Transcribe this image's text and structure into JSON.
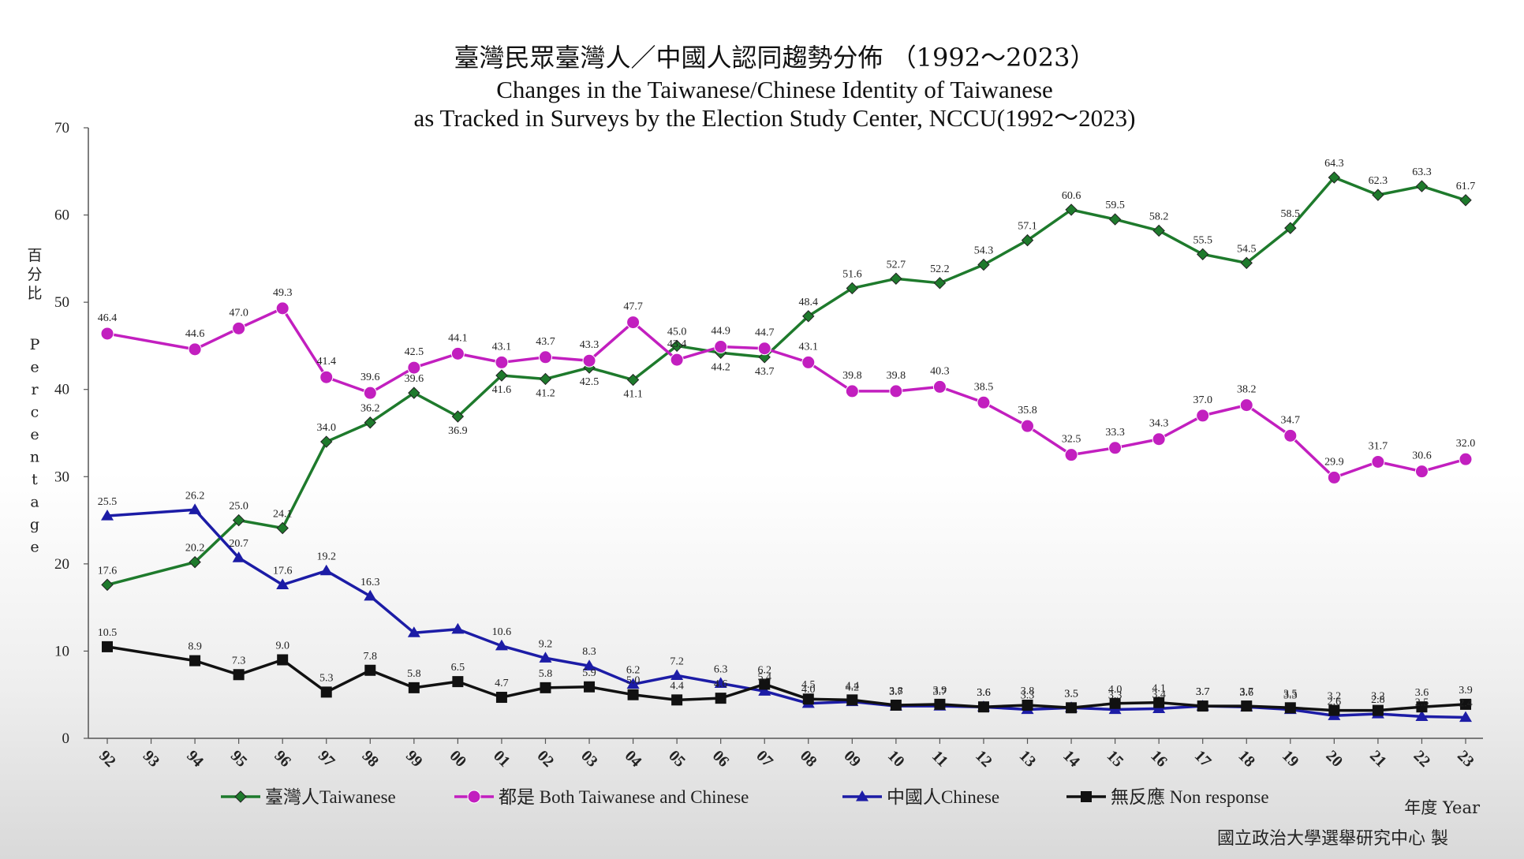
{
  "chart_data": {
    "type": "line",
    "title": "臺灣民眾臺灣人／中國人認同趨勢分佈 （1992～2023）",
    "subtitle_line1": "Changes in the Taiwanese/Chinese Identity of Taiwanese",
    "subtitle_line2": "as Tracked in Surveys by the Election Study Center, NCCU(1992～2023)",
    "ylabel_zh": [
      "百",
      "分",
      "比"
    ],
    "ylabel_en": [
      "P",
      "e",
      "r",
      "c",
      "e",
      "n",
      "t",
      "a",
      "g",
      "e"
    ],
    "xlabel": "年度 Year",
    "credit": "國立政治大學選舉研究中心 製",
    "ylim": [
      0,
      70
    ],
    "y_ticks": [
      "0",
      "10",
      "20",
      "30",
      "40",
      "50",
      "60",
      "70"
    ],
    "categories": [
      "92",
      "93",
      "94",
      "95",
      "96",
      "97",
      "98",
      "99",
      "00",
      "01",
      "02",
      "03",
      "04",
      "05",
      "06",
      "07",
      "08",
      "09",
      "10",
      "11",
      "12",
      "13",
      "14",
      "15",
      "16",
      "17",
      "18",
      "19",
      "20",
      "21",
      "22",
      "23"
    ],
    "grid": false,
    "legend_position": "bottom",
    "series": [
      {
        "name": "臺灣人Taiwanese",
        "color": "#1e7a2c",
        "marker": "diamond",
        "values": [
          17.6,
          null,
          20.2,
          25.0,
          24.1,
          34.0,
          36.2,
          39.6,
          36.9,
          41.6,
          41.2,
          42.5,
          41.1,
          45.0,
          44.2,
          43.7,
          48.4,
          51.6,
          52.7,
          52.2,
          54.3,
          57.1,
          60.6,
          59.5,
          58.2,
          55.5,
          54.5,
          58.5,
          64.3,
          62.3,
          63.3,
          61.7
        ],
        "labels": [
          "17.6",
          "",
          "20.2",
          "25.0",
          "24.1",
          "34.0",
          "36.2",
          "39.6",
          "36.9",
          "41.6",
          "41.2",
          "42.5",
          "41.1",
          "45.0",
          "44.2",
          "43.7",
          "48.4",
          "51.6",
          "52.7",
          "52.2",
          "54.3",
          "57.1",
          "60.6",
          "59.5",
          "58.2",
          "55.5",
          "54.5",
          "58.5",
          "64.3",
          "62.3",
          "63.3",
          "61.7"
        ]
      },
      {
        "name": "都是 Both Taiwanese and Chinese",
        "color": "#c21fbf",
        "marker": "circle",
        "values": [
          46.4,
          null,
          44.6,
          47.0,
          49.3,
          41.4,
          39.6,
          42.5,
          44.1,
          43.1,
          43.7,
          43.3,
          47.7,
          43.4,
          44.9,
          44.7,
          43.1,
          39.8,
          39.8,
          40.3,
          38.5,
          35.8,
          32.5,
          33.3,
          34.3,
          37.0,
          38.2,
          34.7,
          29.9,
          31.7,
          30.6,
          32.0
        ],
        "labels": [
          "46.4",
          "",
          "44.6",
          "47.0",
          "49.3",
          "41.4",
          "39.6",
          "42.5",
          "44.1",
          "43.1",
          "43.7",
          "43.3",
          "47.7",
          "43.4",
          "44.9",
          "44.7",
          "43.1",
          "39.8",
          "39.8",
          "40.3",
          "38.5",
          "35.8",
          "32.5",
          "33.3",
          "34.3",
          "37.0",
          "38.2",
          "34.7",
          "29.9",
          "31.7",
          "30.6",
          "32.0"
        ]
      },
      {
        "name": "中國人Chinese",
        "color": "#1c1ca6",
        "marker": "triangle",
        "values": [
          25.5,
          null,
          26.2,
          20.7,
          17.6,
          19.2,
          16.3,
          12.1,
          12.5,
          10.6,
          9.2,
          8.3,
          6.2,
          7.2,
          6.3,
          5.4,
          4.0,
          4.2,
          3.7,
          3.7,
          3.6,
          3.3,
          3.5,
          3.3,
          3.4,
          3.7,
          3.6,
          3.3,
          2.6,
          2.8,
          2.5,
          2.4
        ],
        "labels": [
          "25.5",
          "",
          "26.2",
          "20.7",
          "17.6",
          "19.2",
          "16.3",
          "",
          "",
          "10.6",
          "9.2",
          "8.3",
          "6.2",
          "7.2",
          "6.3",
          "5.4",
          "4.0",
          "4.2",
          "3.7",
          "3.7",
          "3.6",
          "3.3",
          "3.5",
          "3.3",
          "3.4",
          "3.7",
          "3.6",
          "3.3",
          "2.6",
          "2.8",
          "2.5",
          "2.4"
        ]
      },
      {
        "name": "無反應 Non response",
        "color": "#111111",
        "marker": "square",
        "values": [
          10.5,
          null,
          8.9,
          7.3,
          9.0,
          5.3,
          7.8,
          5.8,
          6.5,
          4.7,
          5.8,
          5.9,
          5.0,
          4.4,
          4.6,
          6.2,
          4.5,
          4.4,
          3.8,
          3.9,
          3.6,
          3.8,
          3.5,
          4.0,
          4.1,
          3.7,
          3.7,
          3.5,
          3.2,
          3.2,
          3.6,
          3.9
        ],
        "labels": [
          "10.5",
          "",
          "8.9",
          "7.3",
          "9.0",
          "5.3",
          "7.8",
          "5.8",
          "6.5",
          "4.7",
          "5.8",
          "5.9",
          "5.0",
          "4.4",
          "4.6",
          "6.2",
          "4.5",
          "4.4",
          "3.8",
          "3.9",
          "3.6",
          "3.8",
          "3.5",
          "4.0",
          "4.1",
          "3.7",
          "3.7",
          "3.5",
          "3.2",
          "3.2",
          "3.6",
          "3.9"
        ]
      }
    ]
  }
}
